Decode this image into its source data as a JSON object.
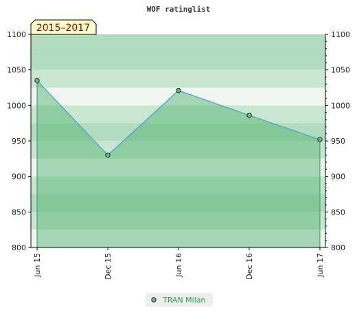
{
  "colors": {
    "background": "#ffffff",
    "band_light": "#eef6ef",
    "band_medium": "#c9e6d0",
    "band_dark": "#b2dcbf",
    "area_fill": "#4caf6c",
    "line": "#4f9fd4",
    "marker": "#6dbf7a",
    "period_bg": "#ffffcc",
    "period_text": "#8b0000",
    "legend_bg": "#eeeeee",
    "legend_text": "#2e9b4b"
  },
  "chart_data": {
    "type": "area",
    "title": "WOF ratinglist",
    "period_label": "2015–2017",
    "x": [
      "Jun 15",
      "Dec 15",
      "Jun 16",
      "Dec 16",
      "Jun 17"
    ],
    "series": [
      {
        "name": "TRAN Milan",
        "values": [
          1035,
          930,
          1021,
          986,
          952
        ]
      }
    ],
    "ylim": [
      800,
      1100
    ],
    "y_ticks": [
      800,
      850,
      900,
      950,
      1000,
      1050,
      1100
    ],
    "y_axis": "both sides",
    "legend_placement": "bottom-center",
    "xlabel": "",
    "ylabel": ""
  }
}
